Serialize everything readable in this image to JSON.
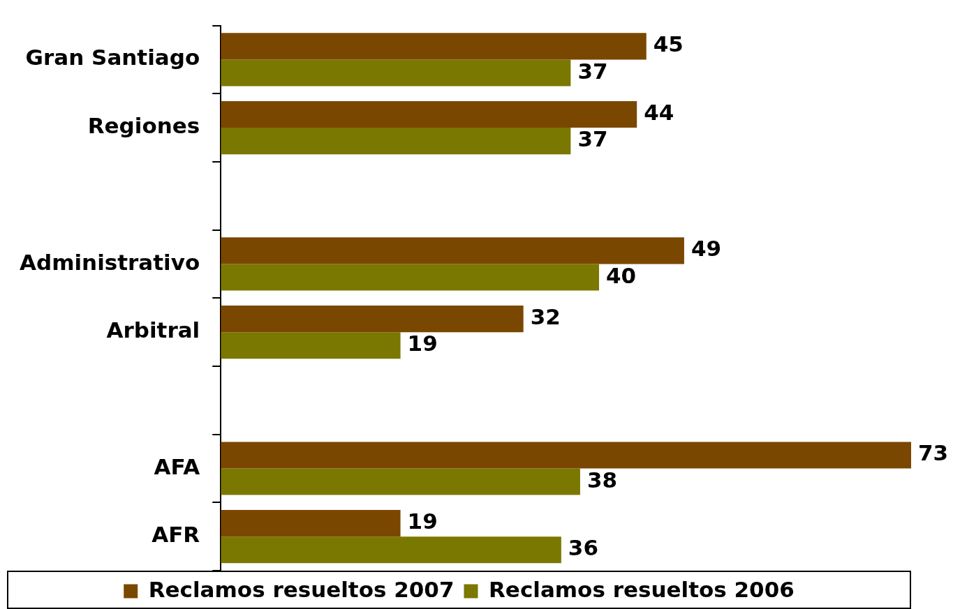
{
  "chart_data": {
    "type": "bar",
    "orientation": "horizontal",
    "categories": [
      "Gran Santiago",
      "Regiones",
      null,
      "Administrativo",
      "Arbitral",
      null,
      "AFA",
      "AFR"
    ],
    "series": [
      {
        "name": "Reclamos resueltos 2007",
        "color": "#7a4700",
        "values": [
          45,
          44,
          null,
          49,
          32,
          null,
          73,
          19
        ]
      },
      {
        "name": "Reclamos resueltos 2006",
        "color": "#7a7800",
        "values": [
          37,
          37,
          null,
          40,
          19,
          null,
          38,
          36
        ]
      }
    ],
    "xlim": [
      0,
      73
    ],
    "tick_labels": "y",
    "data_labels": true,
    "legend": "bottom",
    "grid": false
  }
}
